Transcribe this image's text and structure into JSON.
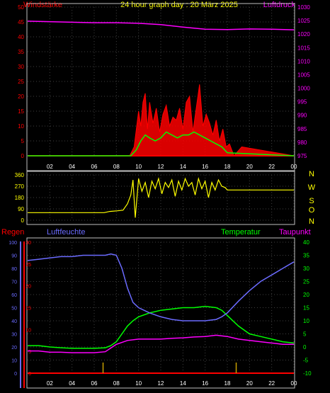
{
  "title": "24 hour graph day : 20 März 2025",
  "colors": {
    "wind": "#ff0000",
    "gust_fill": "#ff0000",
    "avg": "#00ff00",
    "pressure": "#ff00ff",
    "direction": "#ffff00",
    "humidity": "#6b6bff",
    "temperature": "#00ff00",
    "dewpoint": "#ff00ff",
    "rain": "#ff0000",
    "frame": "#c0c0c0"
  },
  "x_ticks": [
    "02",
    "04",
    "06",
    "08",
    "10",
    "12",
    "14",
    "16",
    "18",
    "20",
    "22",
    "00"
  ],
  "chart_data": [
    {
      "type": "line",
      "labels": {
        "left": "Windstärke",
        "right": "Luftdruck"
      },
      "y_left_ticks": [
        "0",
        "5",
        "10",
        "15",
        "20",
        "25",
        "30",
        "35",
        "40",
        "45",
        "50"
      ],
      "y_right_ticks": [
        "975",
        "980",
        "985",
        "990",
        "995",
        "1000",
        "1005",
        "1010",
        "1015",
        "1020",
        "1025",
        "1030"
      ],
      "ylim_left": [
        0,
        50
      ],
      "ylim_right": [
        975,
        1030
      ],
      "series": [
        {
          "role": "pressure",
          "x": [
            0,
            2,
            4,
            6,
            8,
            10,
            12,
            14,
            16,
            18,
            20,
            22,
            24
          ],
          "values": [
            1024.8,
            1024.6,
            1024.4,
            1024.2,
            1024.2,
            1024.0,
            1023.5,
            1022.6,
            1021.8,
            1021.7,
            1021.9,
            1021.8,
            1021.6
          ]
        },
        {
          "role": "wind_gust",
          "x": [
            0,
            9.2,
            9.6,
            10,
            10.2,
            10.4,
            10.6,
            10.8,
            11,
            11.3,
            11.6,
            11.9,
            12.2,
            12.5,
            12.8,
            13.1,
            13.4,
            13.7,
            14,
            14.3,
            14.6,
            14.9,
            15.2,
            15.5,
            15.8,
            16.1,
            16.4,
            16.7,
            17,
            17.3,
            17.6,
            17.9,
            18.2,
            18.6,
            19.3,
            24
          ],
          "values": [
            0,
            0,
            3,
            15,
            10,
            18,
            21,
            9,
            18,
            11,
            16,
            8,
            14,
            17,
            10,
            13,
            12,
            16,
            9,
            18,
            20,
            8,
            16,
            24,
            10,
            14,
            11,
            7,
            12,
            5,
            9,
            3,
            4,
            0,
            3,
            0
          ]
        },
        {
          "role": "wind_avg",
          "x": [
            0,
            9.3,
            9.8,
            10.2,
            10.6,
            11,
            11.5,
            12,
            12.5,
            13,
            13.5,
            14,
            14.5,
            15,
            15.5,
            16,
            16.5,
            17,
            17.5,
            18,
            24
          ],
          "values": [
            0,
            0,
            2,
            5,
            7,
            6,
            5,
            6,
            8,
            7,
            6,
            7,
            7,
            8,
            7,
            6,
            5,
            4,
            3,
            1,
            0
          ]
        }
      ]
    },
    {
      "type": "line",
      "labels": {
        "compass": [
          "N",
          "W",
          "S",
          "O",
          "N"
        ]
      },
      "y_ticks": [
        "360",
        "270",
        "180",
        "90",
        "0"
      ],
      "ylim": [
        0,
        360
      ],
      "series": [
        {
          "role": "direction",
          "x": [
            0,
            6.9,
            7.4,
            8.1,
            8.6,
            9.0,
            9.3,
            9.5,
            9.7,
            10,
            10.3,
            10.6,
            10.9,
            11.2,
            11.5,
            11.8,
            12.1,
            12.4,
            12.7,
            13,
            13.3,
            13.6,
            13.9,
            14.2,
            14.5,
            14.8,
            15.1,
            15.4,
            15.7,
            16,
            16.3,
            16.6,
            16.9,
            17.2,
            17.5,
            17.8,
            18,
            24
          ],
          "values": [
            60,
            60,
            70,
            75,
            80,
            130,
            200,
            320,
            20,
            330,
            230,
            300,
            180,
            310,
            250,
            330,
            210,
            300,
            260,
            320,
            190,
            310,
            240,
            330,
            270,
            300,
            200,
            330,
            250,
            310,
            180,
            300,
            240,
            320,
            270,
            260,
            240,
            240
          ]
        }
      ]
    },
    {
      "type": "line",
      "labels": {
        "rain": "Regen",
        "humidity": "Luftfeuchte",
        "temperature": "Temperatur",
        "dewpoint": "Taupunkt"
      },
      "y_humidity_ticks": [
        "0",
        "10",
        "20",
        "30",
        "40",
        "50",
        "60",
        "70",
        "80",
        "90",
        "100"
      ],
      "y_rain_ticks": [
        "0",
        "5",
        "10",
        "15",
        "20",
        "25",
        "30"
      ],
      "y_temp_ticks": [
        "-10",
        "-5",
        "0",
        "5",
        "10",
        "15",
        "20",
        "25",
        "30",
        "35",
        "40"
      ],
      "ylim_humidity": [
        0,
        100
      ],
      "ylim_temp": [
        -10,
        40
      ],
      "series": [
        {
          "role": "humidity",
          "x": [
            0,
            1,
            2,
            3,
            4,
            5,
            6,
            7,
            7.5,
            8,
            8.5,
            9,
            9.5,
            10,
            11,
            12,
            13,
            14,
            15,
            16,
            17,
            17.5,
            18,
            19,
            20,
            21,
            22,
            23,
            24
          ],
          "values": [
            86,
            87,
            88,
            89,
            89,
            90,
            90,
            90,
            91,
            90,
            80,
            65,
            54,
            50,
            46,
            43,
            41,
            40,
            40,
            40,
            41,
            43,
            46,
            55,
            63,
            70,
            75,
            80,
            85
          ]
        },
        {
          "role": "temperature",
          "x": [
            0,
            1,
            2,
            3,
            4,
            5,
            6,
            7,
            7.5,
            8,
            8.5,
            9,
            9.5,
            10,
            11,
            12,
            13,
            14,
            15,
            16,
            17,
            17.5,
            18,
            19,
            20,
            21,
            22,
            23,
            24
          ],
          "values": [
            0.5,
            0.5,
            0,
            -0.3,
            -0.5,
            -0.5,
            -0.5,
            -0.3,
            0.5,
            2,
            5,
            8,
            10,
            11.5,
            13,
            14,
            14.5,
            15,
            15,
            15.5,
            15,
            14,
            12,
            8,
            5,
            4,
            3,
            2,
            1.5
          ]
        },
        {
          "role": "dewpoint",
          "x": [
            0,
            1,
            2,
            3,
            4,
            5,
            6,
            7,
            8,
            9,
            10,
            11,
            12,
            13,
            14,
            15,
            16,
            17,
            18,
            19,
            20,
            21,
            22,
            23,
            24
          ],
          "values": [
            -1.5,
            -1.5,
            -2,
            -2,
            -2.2,
            -2.2,
            -2.2,
            -1.8,
            1,
            2.5,
            3,
            3,
            3,
            3.3,
            3.5,
            3.8,
            4,
            4.5,
            4,
            3,
            2.5,
            2,
            1.5,
            1,
            1
          ]
        },
        {
          "role": "rain_events",
          "x": [
            6.8,
            18.8
          ],
          "values": [
            1,
            1
          ]
        }
      ]
    }
  ]
}
